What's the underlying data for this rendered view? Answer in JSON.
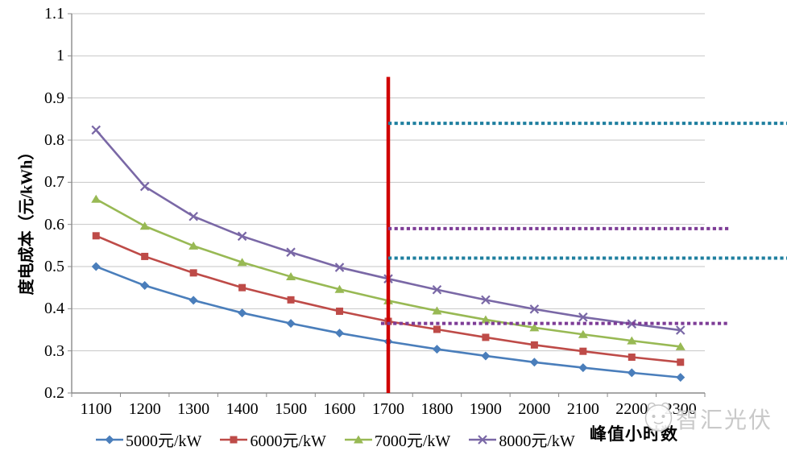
{
  "watermark": {
    "text": "智汇光伏"
  },
  "chart_data": {
    "type": "line",
    "title": "",
    "xlabel": "峰值小时数",
    "ylabel": "度电成本（元/kWh）",
    "ylim": [
      0.2,
      1.1
    ],
    "ytick_step": 0.1,
    "y_tick_labels": [
      "1.1",
      "1",
      "0.9",
      "0.8",
      "0.7",
      "0.6",
      "0.5",
      "0.4",
      "0.3",
      "0.2"
    ],
    "grid": "horizontal",
    "legend_position": "bottom",
    "categories": [
      1100,
      1200,
      1300,
      1400,
      1500,
      1600,
      1700,
      1800,
      1900,
      2000,
      2100,
      2200,
      2300
    ],
    "series": [
      {
        "name": "5000元/kW",
        "color": "#4a7ebb",
        "marker": "diamond",
        "values": [
          0.5,
          0.455,
          0.42,
          0.39,
          0.365,
          0.342,
          0.322,
          0.304,
          0.288,
          0.273,
          0.26,
          0.248,
          0.237
        ]
      },
      {
        "name": "6000元/kW",
        "color": "#be4b48",
        "marker": "square",
        "values": [
          0.573,
          0.524,
          0.485,
          0.45,
          0.421,
          0.394,
          0.37,
          0.351,
          0.332,
          0.314,
          0.299,
          0.285,
          0.273
        ]
      },
      {
        "name": "7000元/kW",
        "color": "#98b954",
        "marker": "triangle",
        "values": [
          0.66,
          0.596,
          0.549,
          0.51,
          0.476,
          0.446,
          0.419,
          0.395,
          0.374,
          0.355,
          0.339,
          0.324,
          0.31
        ]
      },
      {
        "name": "8000元/kW",
        "color": "#7a68a6",
        "marker": "x",
        "values": [
          0.824,
          0.69,
          0.619,
          0.572,
          0.534,
          0.498,
          0.471,
          0.445,
          0.421,
          0.399,
          0.38,
          0.364,
          0.349
        ]
      }
    ],
    "reference_lines": {
      "vertical": {
        "x": 1700,
        "y_top": 0.95,
        "y_bottom": 0.2,
        "color": "#d00000"
      },
      "horizontal": [
        {
          "value": 0.84,
          "from_x": 1700,
          "to_edge": true,
          "color": "#1f7f9f"
        },
        {
          "value": 0.59,
          "from_x": 1700,
          "to_x": 2400,
          "color": "#7d3c96"
        },
        {
          "value": 0.52,
          "from_x": 1700,
          "to_edge": true,
          "color": "#1f7f9f"
        },
        {
          "value": 0.365,
          "from_x": 1685,
          "to_x": 2400,
          "color": "#7d3c96"
        }
      ]
    },
    "axis_color": "#8a8a8a",
    "grid_color": "#c6c6c6"
  }
}
